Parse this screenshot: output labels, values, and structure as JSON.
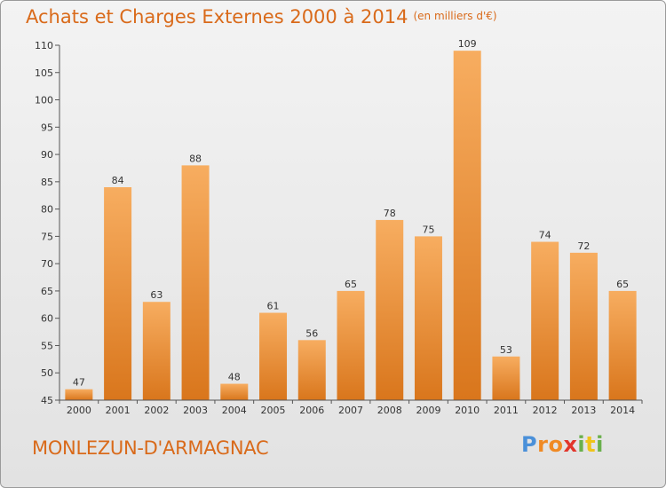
{
  "page": {
    "title": "Achats et Charges Externes 2000 à 2014",
    "title_unit": "(en milliers d'€)",
    "commune": "MONLEZUN-D'ARMAGNAC",
    "logo": {
      "text": "Proxiti",
      "letters": [
        "P",
        "r",
        "o",
        "x",
        "i",
        "t",
        "i"
      ],
      "colors": [
        "#4a90d9",
        "#f08a24",
        "#f08a24",
        "#e2362b",
        "#6ab04c",
        "#f0c419",
        "#6ab04c"
      ]
    },
    "colors": {
      "title": "#d96a1a",
      "bar_top": "#f5a85a",
      "bar_bottom": "#d9761c",
      "axis": "#555555"
    }
  },
  "chart_data": {
    "type": "bar",
    "categories": [
      "2000",
      "2001",
      "2002",
      "2003",
      "2004",
      "2005",
      "2006",
      "2007",
      "2008",
      "2009",
      "2010",
      "2011",
      "2012",
      "2013",
      "2014"
    ],
    "values": [
      47,
      84,
      63,
      88,
      48,
      61,
      56,
      65,
      78,
      75,
      109,
      53,
      74,
      72,
      65
    ],
    "ylim": [
      45,
      110
    ],
    "yticks": [
      45,
      50,
      55,
      60,
      65,
      70,
      75,
      80,
      85,
      90,
      95,
      100,
      105,
      110
    ],
    "grid": false,
    "value_labels": true
  }
}
